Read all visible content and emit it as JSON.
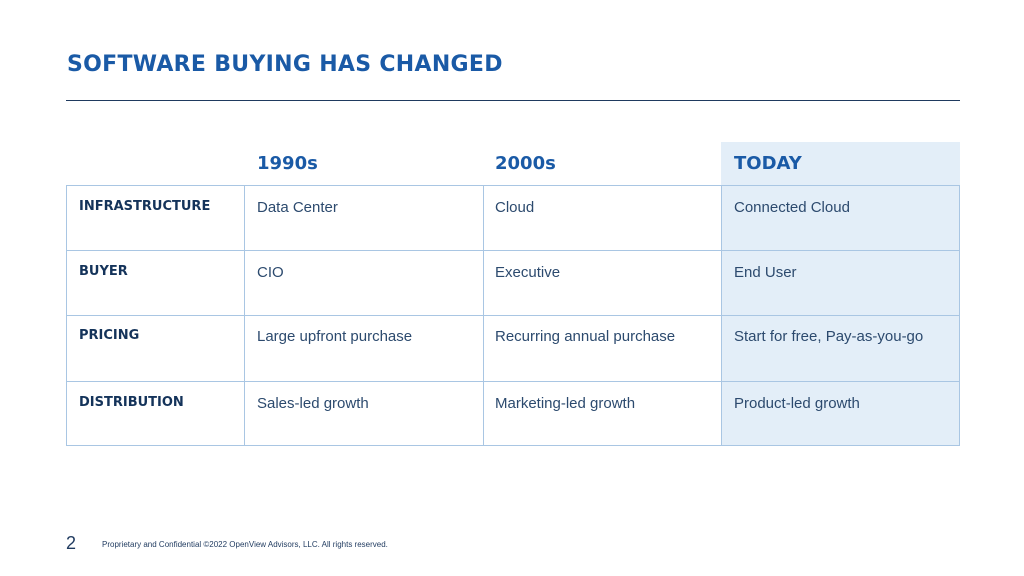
{
  "slide": {
    "title": "SOFTWARE BUYING HAS CHANGED",
    "page_number": "2",
    "footer": "Proprietary and Confidential ©2022 OpenView Advisors, LLC. All rights reserved."
  },
  "table": {
    "columns": [
      "1990s",
      "2000s",
      "TODAY"
    ],
    "rows": [
      {
        "label": "INFRASTRUCTURE",
        "cells": [
          "Data Center",
          "Cloud",
          "Connected Cloud"
        ]
      },
      {
        "label": "BUYER",
        "cells": [
          "CIO",
          "Executive",
          "End User"
        ]
      },
      {
        "label": "PRICING",
        "cells": [
          "Large upfront purchase",
          "Recurring annual purchase",
          "Start for free, Pay-as-you-go"
        ]
      },
      {
        "label": "DISTRIBUTION",
        "cells": [
          "Sales-led growth",
          "Marketing-led growth",
          "Product-led growth"
        ]
      }
    ]
  },
  "colors": {
    "accent": "#1a5aa6",
    "highlight_column": "#e3eef8",
    "grid": "#a9c6e3"
  }
}
